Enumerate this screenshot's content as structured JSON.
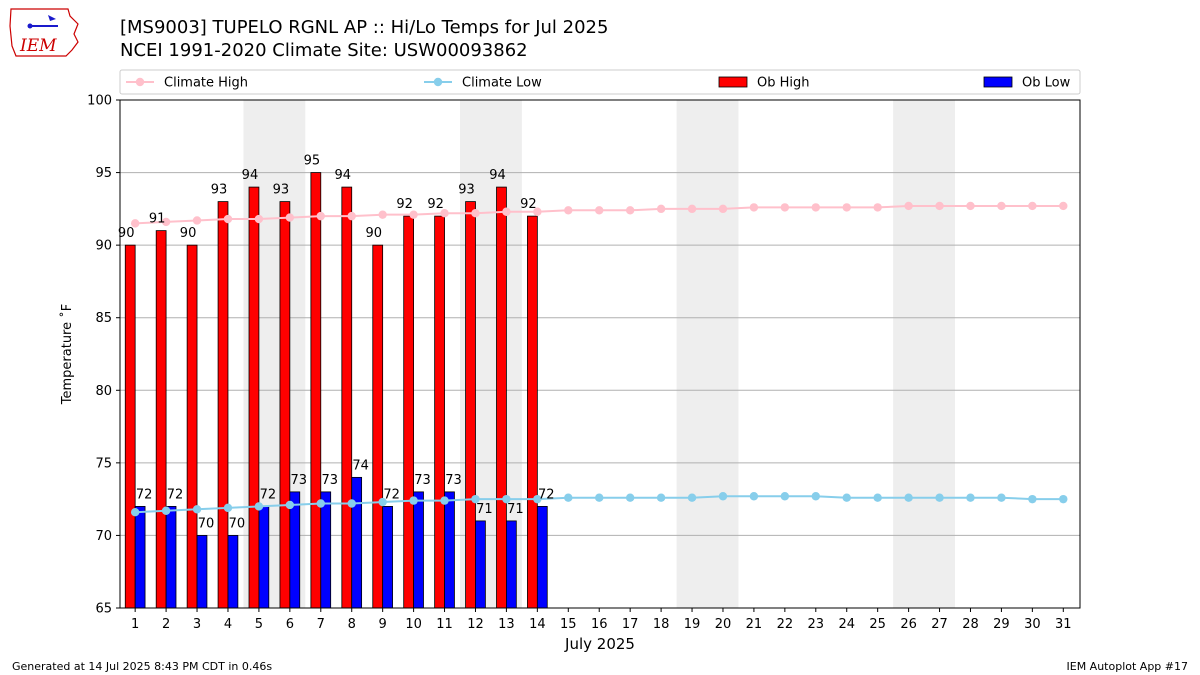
{
  "header": {
    "title_line1": "[MS9003] TUPELO RGNL AP :: Hi/Lo Temps for Jul 2025",
    "title_line2": "NCEI 1991-2020 Climate Site: USW00093862"
  },
  "logo": {
    "text": "IEM"
  },
  "footer": {
    "left": "Generated at 14 Jul 2025 8:43 PM CDT in 0.46s",
    "right": "IEM Autoplot App #17"
  },
  "chart_data": {
    "type": "bar",
    "xlabel": "July 2025",
    "ylabel": "Temperature ˚F",
    "ylim": [
      65,
      100
    ],
    "yticks": [
      65,
      70,
      75,
      80,
      85,
      90,
      95,
      100
    ],
    "grid": true,
    "legend_position": "top",
    "legend": [
      {
        "label": "Climate High",
        "kind": "line",
        "color": "#ffc0cb"
      },
      {
        "label": "Climate Low",
        "kind": "line",
        "color": "#87ceeb"
      },
      {
        "label": "Ob High",
        "kind": "bar",
        "color": "#ff0000"
      },
      {
        "label": "Ob Low",
        "kind": "bar",
        "color": "#0000ff"
      }
    ],
    "weekend_shading_days": [
      [
        5,
        6
      ],
      [
        12,
        13
      ],
      [
        19,
        20
      ],
      [
        26,
        27
      ]
    ],
    "days": [
      1,
      2,
      3,
      4,
      5,
      6,
      7,
      8,
      9,
      10,
      11,
      12,
      13,
      14,
      15,
      16,
      17,
      18,
      19,
      20,
      21,
      22,
      23,
      24,
      25,
      26,
      27,
      28,
      29,
      30,
      31
    ],
    "series": [
      {
        "name": "Ob High",
        "type": "bar",
        "color": "#ff0000",
        "values": [
          90,
          91,
          90,
          93,
          94,
          93,
          95,
          94,
          90,
          92,
          92,
          93,
          94,
          92
        ]
      },
      {
        "name": "Ob Low",
        "type": "bar",
        "color": "#0000ff",
        "values": [
          72,
          72,
          70,
          70,
          72,
          73,
          73,
          74,
          72,
          73,
          73,
          71,
          71,
          72
        ]
      },
      {
        "name": "Climate High",
        "type": "line",
        "color": "#ffc0cb",
        "values": [
          91.5,
          91.6,
          91.7,
          91.8,
          91.8,
          91.9,
          92.0,
          92.0,
          92.1,
          92.1,
          92.2,
          92.2,
          92.3,
          92.3,
          92.4,
          92.4,
          92.4,
          92.5,
          92.5,
          92.5,
          92.6,
          92.6,
          92.6,
          92.6,
          92.6,
          92.7,
          92.7,
          92.7,
          92.7,
          92.7,
          92.7
        ]
      },
      {
        "name": "Climate Low",
        "type": "line",
        "color": "#87ceeb",
        "values": [
          71.6,
          71.7,
          71.8,
          71.9,
          72.0,
          72.1,
          72.2,
          72.2,
          72.3,
          72.4,
          72.4,
          72.5,
          72.5,
          72.5,
          72.6,
          72.6,
          72.6,
          72.6,
          72.6,
          72.7,
          72.7,
          72.7,
          72.7,
          72.6,
          72.6,
          72.6,
          72.6,
          72.6,
          72.6,
          72.5,
          72.5
        ]
      }
    ]
  }
}
